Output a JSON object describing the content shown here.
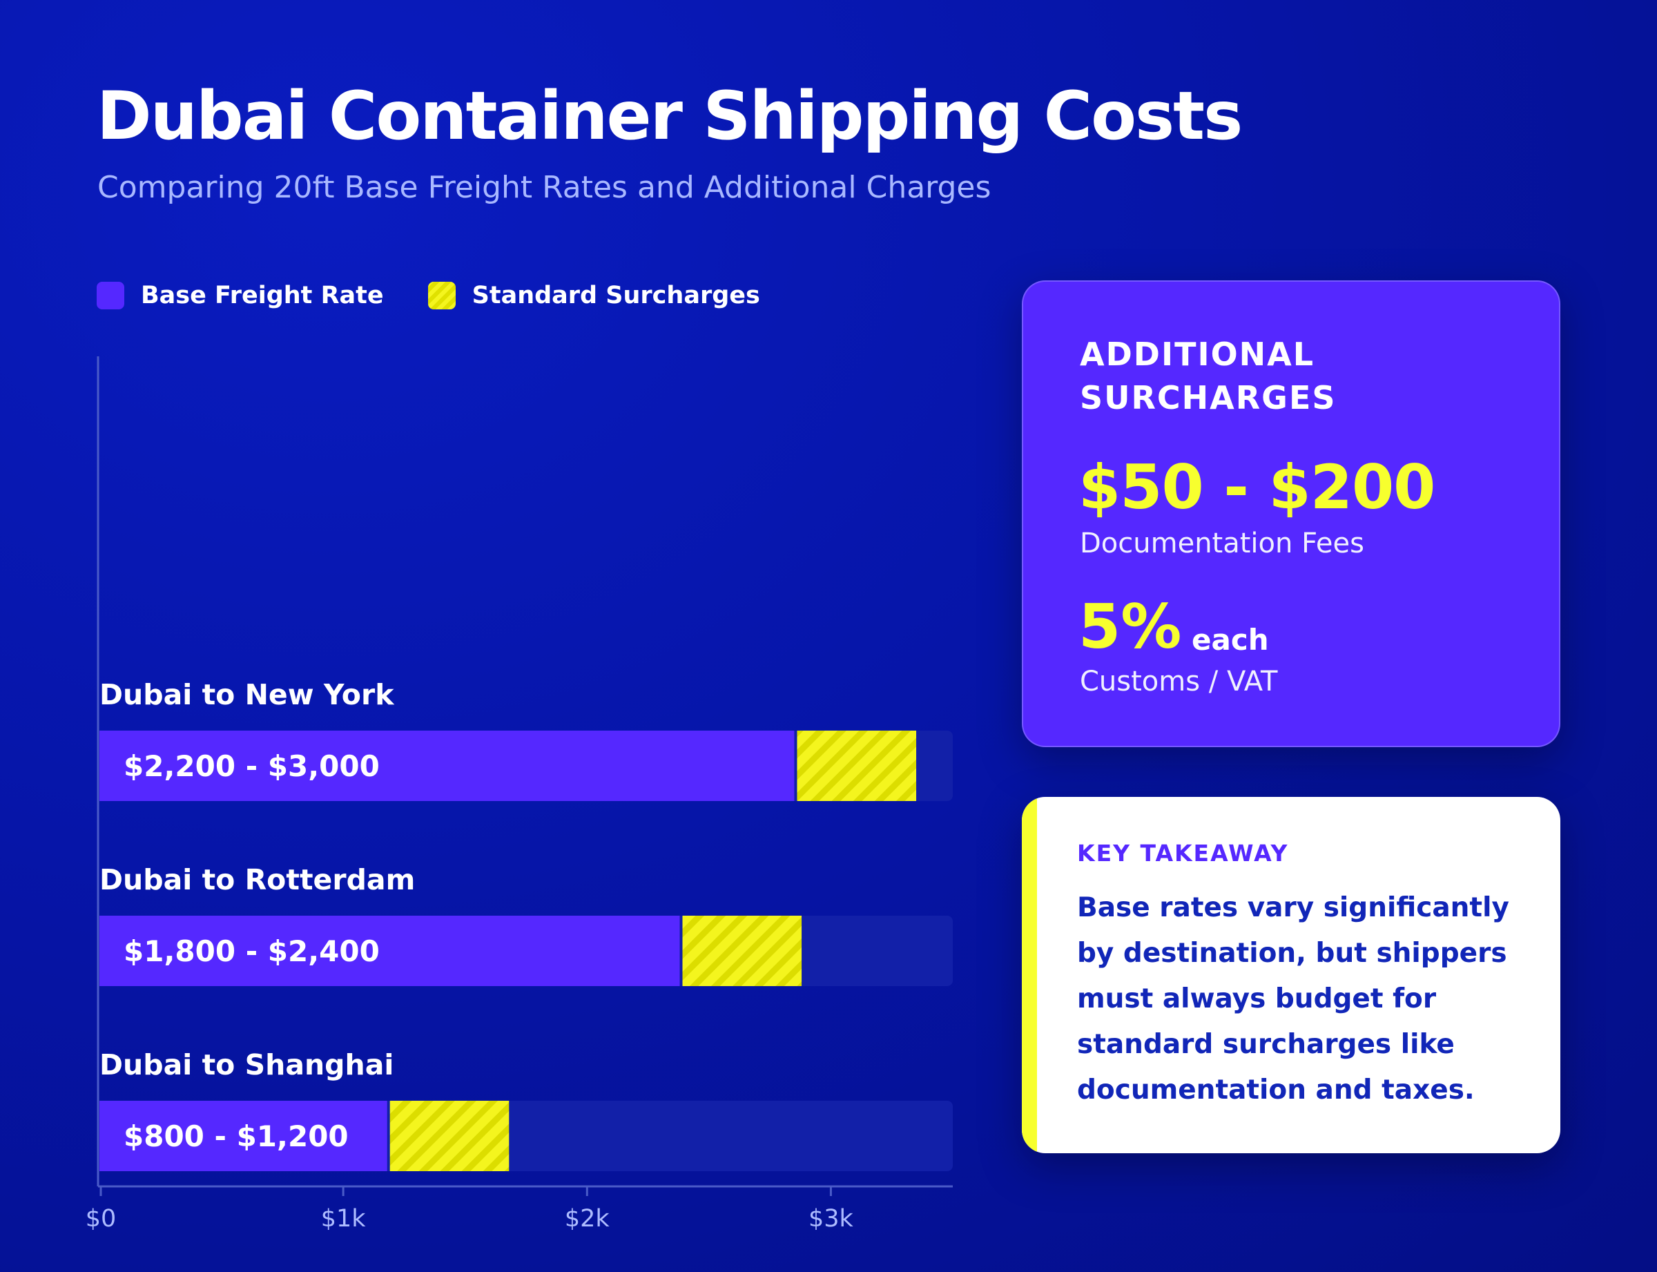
{
  "title": "Dubai Container Shipping Costs",
  "subtitle": "Comparing 20ft Base Freight Rates and Additional Charges",
  "legend": {
    "base_label": "Base Freight Rate",
    "surcharge_label": "Standard Surcharges"
  },
  "colors": {
    "base": "#5528ff",
    "surcharge": "#f4f51e",
    "surcharge_stripe": "#e0e100",
    "track": "#1220a8",
    "axis": "#4a5bc8",
    "tick_label": "#aebcff"
  },
  "chart_data": {
    "type": "bar",
    "orientation": "horizontal",
    "stacked": true,
    "xlim": [
      0,
      3500
    ],
    "x_ticks": [
      0,
      1000,
      2000,
      3000
    ],
    "x_tick_labels": [
      "$0",
      "$1k",
      "$2k",
      "$3k"
    ],
    "categories": [
      "Dubai to New York",
      "Dubai to Rotterdam",
      "Dubai to Shanghai"
    ],
    "range_labels": [
      "$2,200 - $3,000",
      "$1,800 - $2,400",
      "$800 - $1,200"
    ],
    "series": [
      {
        "name": "Base Freight Rate",
        "values": [
          2850,
          2380,
          1180
        ]
      },
      {
        "name": "Standard Surcharges",
        "values": [
          500,
          500,
          500
        ]
      }
    ],
    "legend_position": "top-left",
    "grid": false
  },
  "panel": {
    "heading": "ADDITIONAL SURCHARGES",
    "stat1_value": "$50 - $200",
    "stat1_label": "Documentation Fees",
    "stat2_value": "5%",
    "stat2_unit": "each",
    "stat2_label": "Customs / VAT"
  },
  "takeaway": {
    "label": "KEY TAKEAWAY",
    "text": "Base rates vary significantly by destination, but shippers must always budget for standard surcharges like documentation and taxes."
  }
}
